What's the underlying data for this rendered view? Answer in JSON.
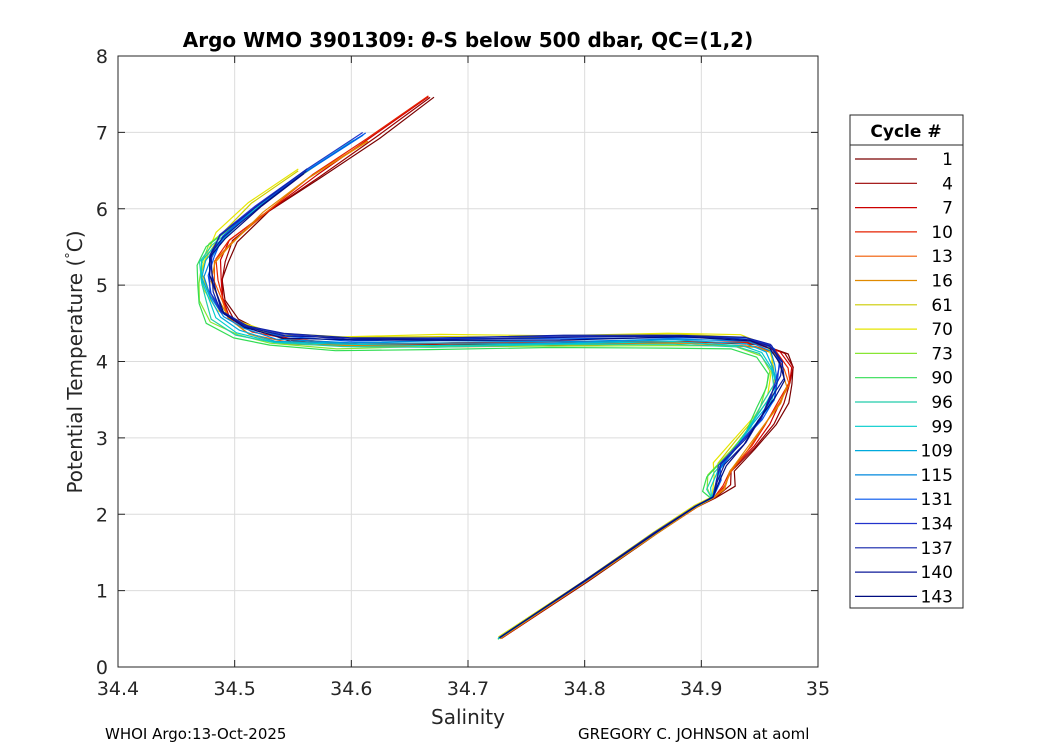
{
  "chart_data": {
    "type": "line",
    "title_parts": [
      "Argo WMO 3901309: ",
      "θ",
      "-S below 500 dbar,  QC=(1,2)"
    ],
    "xlabel": "Salinity",
    "ylabel_parts": [
      "Potential Temperature (",
      "°",
      "C)"
    ],
    "xlim": [
      34.4,
      35.0
    ],
    "ylim": [
      0,
      8
    ],
    "xticks": [
      34.4,
      34.5,
      34.6,
      34.7,
      34.8,
      34.9,
      35.0
    ],
    "xtick_labels": [
      "34.4",
      "34.5",
      "34.6",
      "34.7",
      "34.8",
      "34.9",
      "35"
    ],
    "yticks": [
      0,
      1,
      2,
      3,
      4,
      5,
      6,
      7,
      8
    ],
    "ytick_labels": [
      "0",
      "1",
      "2",
      "3",
      "4",
      "5",
      "6",
      "7",
      "8"
    ],
    "grid": true,
    "legend": {
      "title": "Cycle #",
      "placement": "outside-right"
    },
    "base_curve": {
      "salinity": [
        34.727,
        34.8,
        34.86,
        34.895,
        34.91,
        34.915,
        34.918,
        34.935,
        34.95,
        34.962,
        34.968,
        34.967,
        34.96,
        34.94,
        34.88,
        34.78,
        34.68,
        34.6,
        34.54,
        34.51,
        34.49,
        34.482,
        34.478,
        34.48,
        34.49,
        34.52,
        34.56,
        34.61,
        34.66
      ],
      "theta": [
        0.38,
        1.12,
        1.75,
        2.1,
        2.22,
        2.4,
        2.6,
        2.9,
        3.2,
        3.5,
        3.75,
        3.95,
        4.15,
        4.26,
        4.29,
        4.27,
        4.26,
        4.25,
        4.3,
        4.42,
        4.6,
        4.85,
        5.1,
        5.35,
        5.6,
        6.0,
        6.45,
        6.95,
        7.5
      ]
    },
    "series": [
      {
        "name": "1",
        "color": "#7a0000",
        "s_offset": 0.012,
        "t_offset": -0.04,
        "s_max": 34.69,
        "t_max": 7.8
      },
      {
        "name": "4",
        "color": "#990000",
        "s_offset": 0.01,
        "t_offset": -0.03,
        "s_max": 34.695,
        "t_max": 7.82
      },
      {
        "name": "7",
        "color": "#cc0000",
        "s_offset": 0.008,
        "t_offset": -0.02,
        "s_max": 34.69,
        "t_max": 7.78
      },
      {
        "name": "10",
        "color": "#e62200",
        "s_offset": 0.006,
        "t_offset": -0.02,
        "s_max": 34.68,
        "t_max": 7.7
      },
      {
        "name": "13",
        "color": "#f05a00",
        "s_offset": 0.005,
        "t_offset": -0.05,
        "s_max": 34.64,
        "t_max": 7.2
      },
      {
        "name": "16",
        "color": "#e08a00",
        "s_offset": 0.004,
        "t_offset": -0.06,
        "s_max": 34.62,
        "t_max": 7.05
      },
      {
        "name": "61",
        "color": "#cccc00",
        "s_offset": -0.004,
        "t_offset": 0.06,
        "s_max": 34.6,
        "t_max": 6.7
      },
      {
        "name": "70",
        "color": "#e6e600",
        "s_offset": -0.006,
        "t_offset": 0.08,
        "s_max": 34.6,
        "t_max": 6.75
      },
      {
        "name": "73",
        "color": "#88e633",
        "s_offset": -0.01,
        "t_offset": -0.07,
        "s_max": 34.62,
        "t_max": 7.0
      },
      {
        "name": "90",
        "color": "#33dd55",
        "s_offset": -0.012,
        "t_offset": -0.1,
        "s_max": 34.6,
        "t_max": 6.8
      },
      {
        "name": "96",
        "color": "#22ccaa",
        "s_offset": -0.008,
        "t_offset": -0.06,
        "s_max": 34.62,
        "t_max": 7.1
      },
      {
        "name": "99",
        "color": "#00cccc",
        "s_offset": -0.006,
        "t_offset": -0.04,
        "s_max": 34.64,
        "t_max": 7.3
      },
      {
        "name": "109",
        "color": "#00aadd",
        "s_offset": -0.004,
        "t_offset": -0.02,
        "s_max": 34.655,
        "t_max": 7.48
      },
      {
        "name": "115",
        "color": "#0088dd",
        "s_offset": -0.002,
        "t_offset": 0.0,
        "s_max": 34.65,
        "t_max": 7.42
      },
      {
        "name": "131",
        "color": "#0055ee",
        "s_offset": 0.0,
        "t_offset": 0.03,
        "s_max": 34.64,
        "t_max": 7.3
      },
      {
        "name": "134",
        "color": "#2233cc",
        "s_offset": -0.001,
        "t_offset": 0.05,
        "s_max": 34.62,
        "t_max": 7.05
      },
      {
        "name": "137",
        "color": "#1122aa",
        "s_offset": 0.0,
        "t_offset": 0.06,
        "s_max": 34.6,
        "t_max": 6.9
      },
      {
        "name": "140",
        "color": "#0d1a99",
        "s_offset": 0.001,
        "t_offset": 0.04,
        "s_max": 34.6,
        "t_max": 6.85
      },
      {
        "name": "143",
        "color": "#000d80",
        "s_offset": 0.001,
        "t_offset": 0.02,
        "s_max": 34.61,
        "t_max": 6.95
      }
    ]
  },
  "footer": {
    "left": "WHOI Argo:13-Oct-2025",
    "right": "GREGORY C. JOHNSON at aoml"
  }
}
